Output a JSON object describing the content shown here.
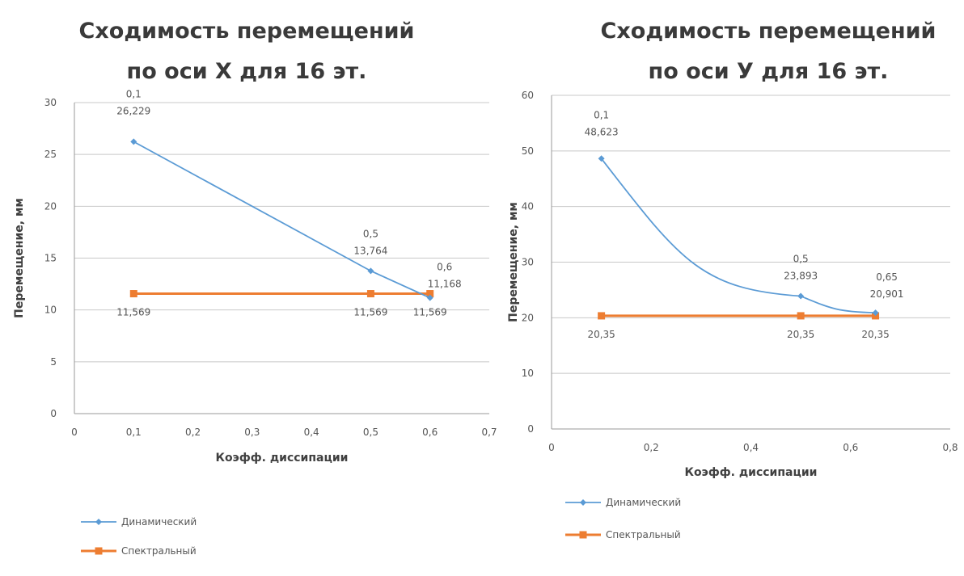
{
  "chart_data": [
    {
      "type": "line",
      "title_line1": "Сходимость перемещений",
      "title_line2": "по оси X для 16 эт.",
      "xlabel": "Коэфф. диссипации",
      "ylabel": "Перемещение, мм",
      "xlim": [
        0,
        0.7
      ],
      "ylim": [
        0,
        30
      ],
      "x_ticks": [
        0,
        0.1,
        0.2,
        0.3,
        0.4,
        0.5,
        0.6,
        0.7
      ],
      "x_tick_labels": [
        "0",
        "0,1",
        "0,2",
        "0,3",
        "0,4",
        "0,5",
        "0,6",
        "0,7"
      ],
      "y_ticks": [
        0,
        5,
        10,
        15,
        20,
        25,
        30
      ],
      "y_tick_labels": [
        "0",
        "5",
        "10",
        "15",
        "20",
        "25",
        "30"
      ],
      "grid": "horizontal",
      "legend_position": "bottom-left",
      "series": [
        {
          "name": "Динамический",
          "color": "#5b9bd5",
          "marker": "diamond",
          "x": [
            0.1,
            0.5,
            0.6
          ],
          "y": [
            26.229,
            13.764,
            11.168
          ],
          "labels": [
            [
              "0,1",
              "26,229"
            ],
            [
              "0,5",
              "13,764"
            ],
            [
              "0,6",
              "11,168"
            ]
          ]
        },
        {
          "name": "Спектральный",
          "color": "#ed7d31",
          "marker": "square",
          "x": [
            0.1,
            0.5,
            0.6
          ],
          "y": [
            11.569,
            11.569,
            11.569
          ],
          "labels": [
            [
              "11,569"
            ],
            [
              "11,569"
            ],
            [
              "11,569"
            ]
          ]
        }
      ]
    },
    {
      "type": "line",
      "title_line1": "Сходимость перемещений",
      "title_line2": "по оси У для 16 эт.",
      "xlabel": "Коэфф. диссипации",
      "ylabel": "Перемещение, мм",
      "xlim": [
        0,
        0.8
      ],
      "ylim": [
        0,
        60
      ],
      "x_ticks": [
        0,
        0.2,
        0.4,
        0.6,
        0.8
      ],
      "x_tick_labels": [
        "0",
        "0,2",
        "0,4",
        "0,6",
        "0,8"
      ],
      "y_ticks": [
        0,
        10,
        20,
        30,
        40,
        50,
        60
      ],
      "y_tick_labels": [
        "0",
        "10",
        "20",
        "30",
        "40",
        "50",
        "60"
      ],
      "grid": "horizontal",
      "legend_position": "bottom-left",
      "series": [
        {
          "name": "Динамический",
          "color": "#5b9bd5",
          "marker": "diamond",
          "x": [
            0.1,
            0.5,
            0.65
          ],
          "y": [
            48.623,
            23.893,
            20.901
          ],
          "labels": [
            [
              "0,1",
              "48,623"
            ],
            [
              "0,5",
              "23,893"
            ],
            [
              "0,65",
              "20,901"
            ]
          ]
        },
        {
          "name": "Спектральный",
          "color": "#ed7d31",
          "marker": "square",
          "x": [
            0.1,
            0.5,
            0.65
          ],
          "y": [
            20.35,
            20.35,
            20.35
          ],
          "labels": [
            [
              "20,35"
            ],
            [
              "20,35"
            ],
            [
              "20,35"
            ]
          ]
        }
      ]
    }
  ]
}
